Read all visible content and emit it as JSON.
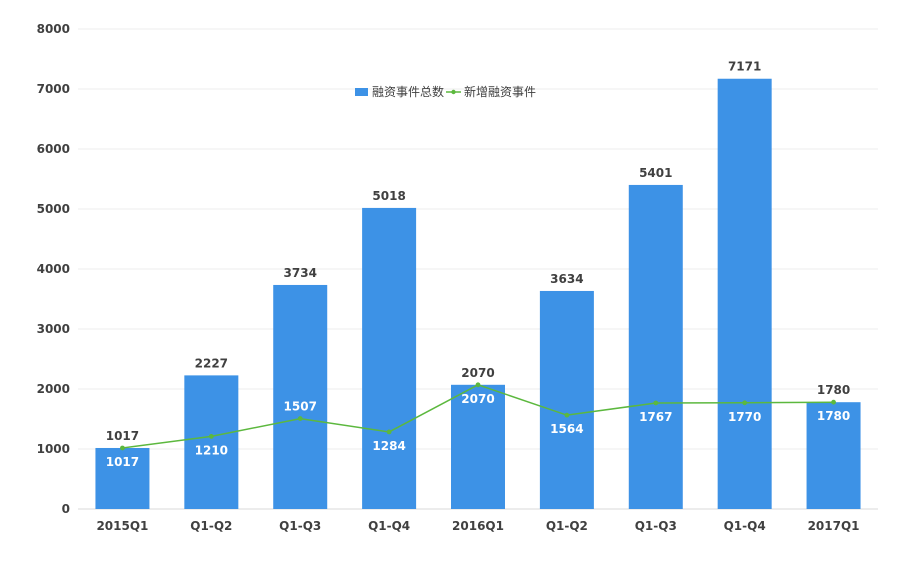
{
  "chart_data": {
    "type": "bar",
    "categories": [
      "2015Q1",
      "Q1-Q2",
      "Q1-Q3",
      "Q1-Q4",
      "2016Q1",
      "Q1-Q2",
      "Q1-Q3",
      "Q1-Q4",
      "2017Q1"
    ],
    "series": [
      {
        "name": "融资事件总数",
        "type": "bar",
        "color": "#3d92e6",
        "values": [
          1017,
          2227,
          3734,
          5018,
          2070,
          3634,
          5401,
          7171,
          1780
        ]
      },
      {
        "name": "新增融资事件",
        "type": "line",
        "color": "#5cb83e",
        "values": [
          1017,
          1210,
          1507,
          1284,
          2070,
          1564,
          1767,
          1770,
          1780
        ]
      }
    ],
    "title": "",
    "xlabel": "",
    "ylabel": "",
    "ylim": [
      0,
      8000
    ],
    "yticks": [
      0,
      1000,
      2000,
      3000,
      4000,
      5000,
      6000,
      7000,
      8000
    ],
    "grid": true,
    "legend": "top-center"
  }
}
